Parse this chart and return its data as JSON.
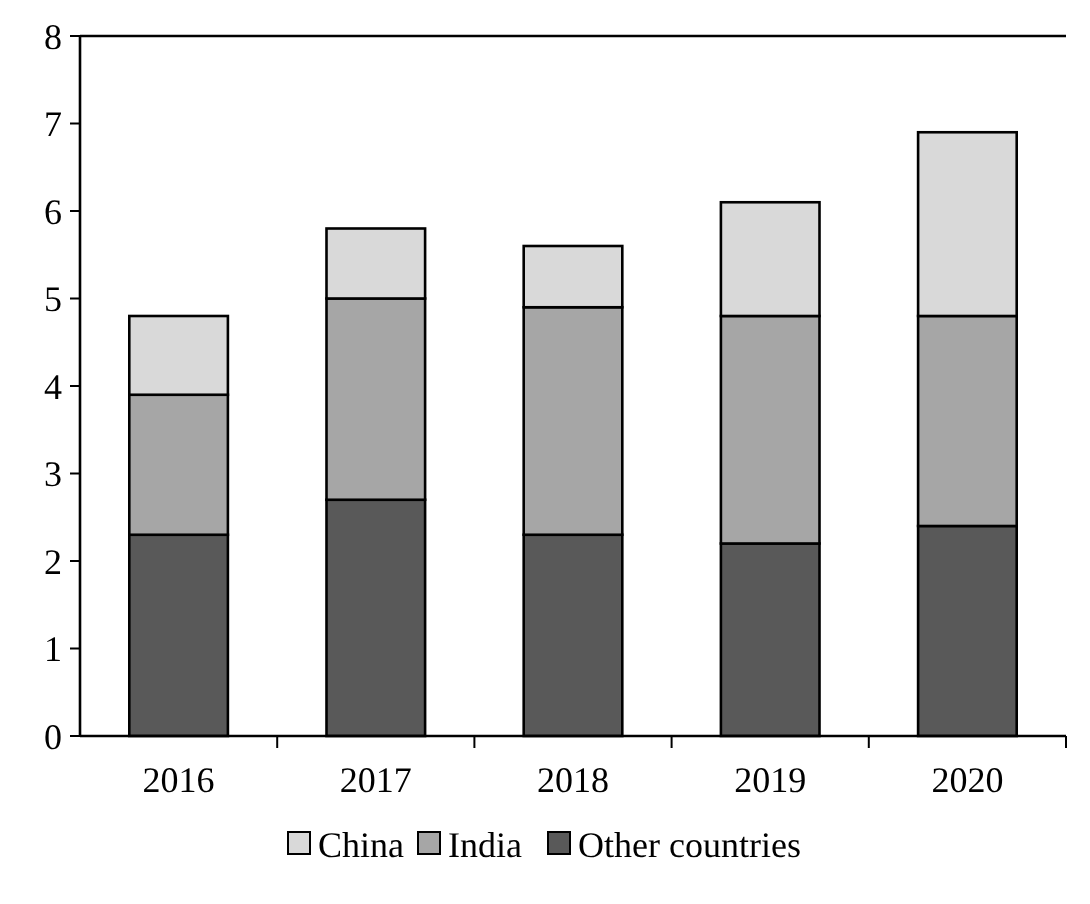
{
  "chart_data": {
    "type": "bar",
    "stacked": true,
    "categories": [
      "2016",
      "2017",
      "2018",
      "2019",
      "2020"
    ],
    "series": [
      {
        "name": "Other countries",
        "color": "#595959",
        "values": [
          2.3,
          2.7,
          2.3,
          2.2,
          2.4
        ]
      },
      {
        "name": "India",
        "color": "#a6a6a6",
        "values": [
          1.6,
          2.3,
          2.6,
          2.6,
          2.4
        ]
      },
      {
        "name": "China",
        "color": "#d9d9d9",
        "values": [
          0.9,
          0.8,
          0.7,
          1.3,
          2.1
        ]
      }
    ],
    "ylim": [
      0,
      8
    ],
    "yticks": [
      0,
      1,
      2,
      3,
      4,
      5,
      6,
      7,
      8
    ],
    "legend": "bottom"
  }
}
